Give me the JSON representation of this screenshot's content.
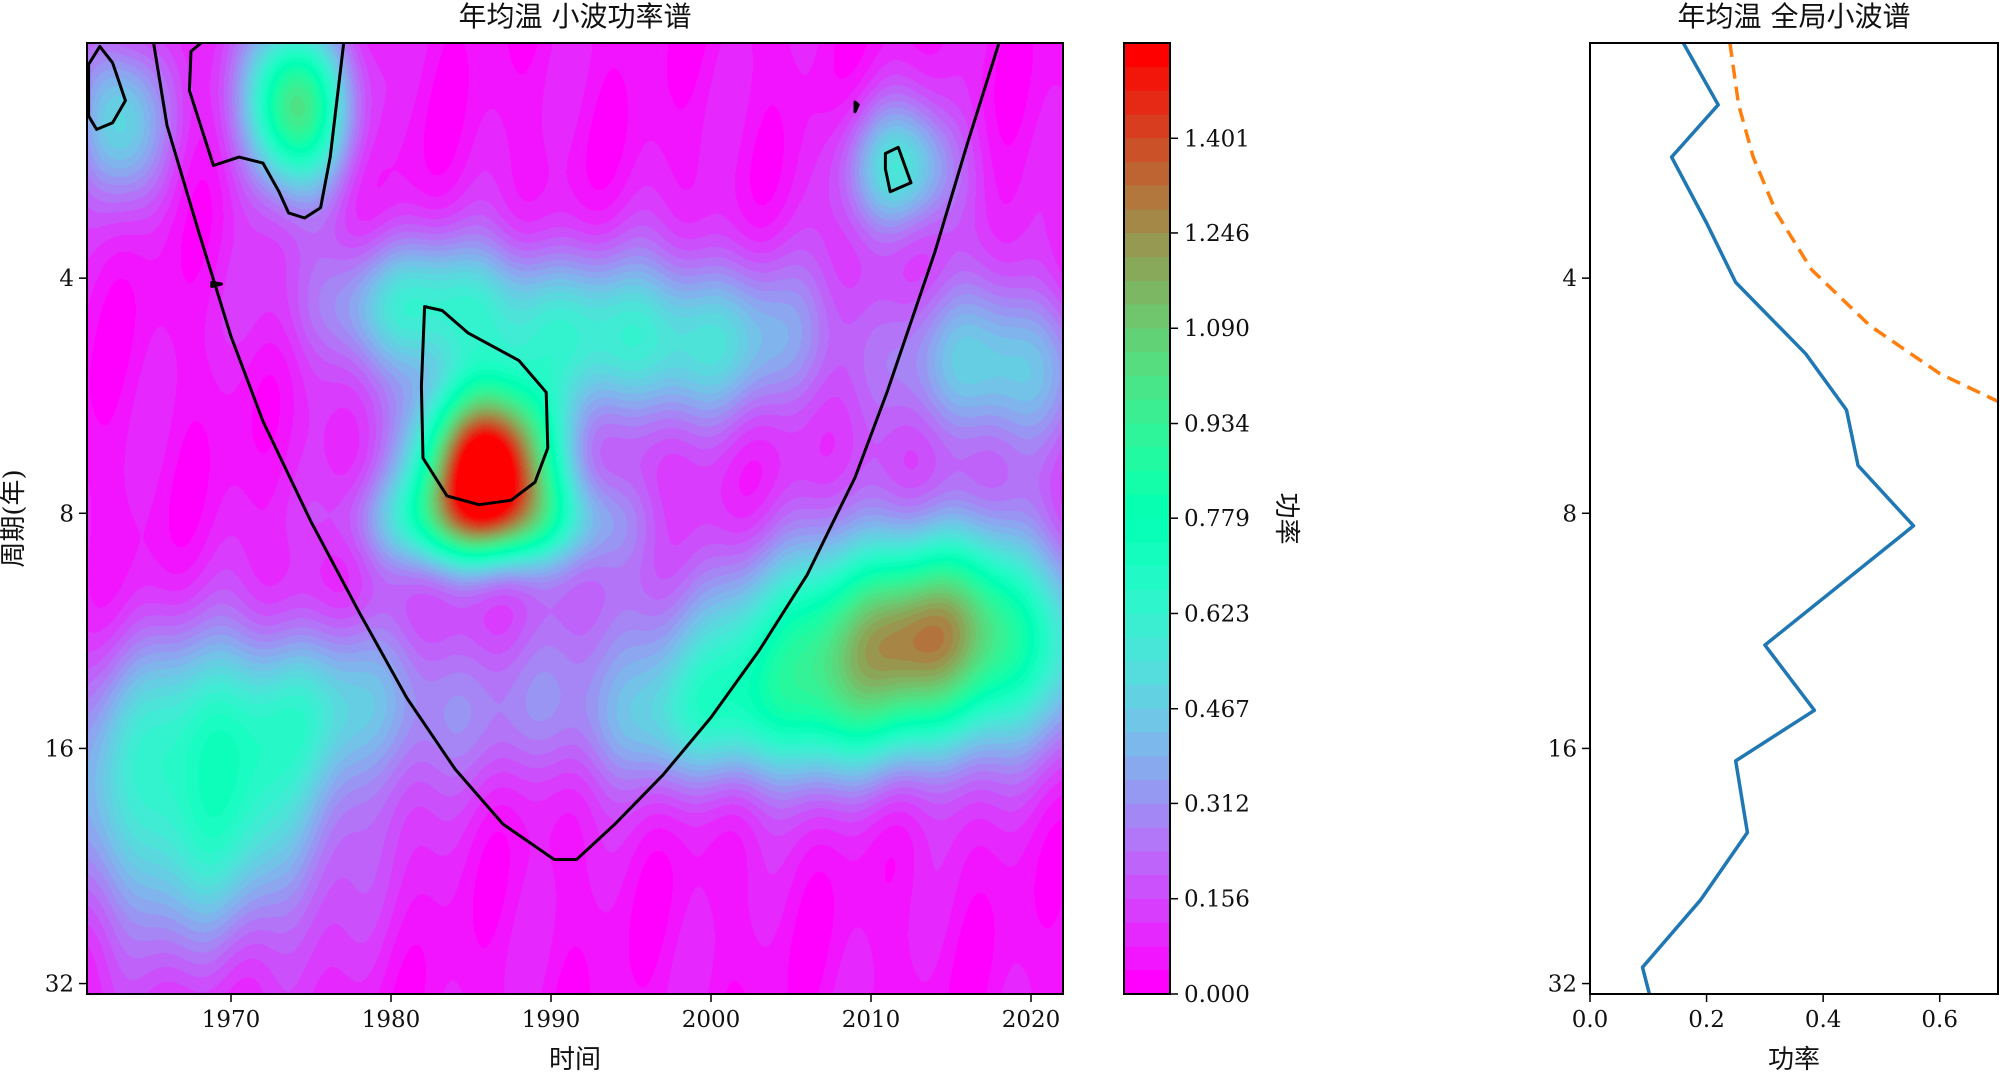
{
  "chart_data": [
    {
      "type": "heatmap",
      "title": "年均温 小波功率谱",
      "xlabel": "时间",
      "ylabel": "周期(年)",
      "colorbar_label": "功率",
      "colormap": "rainbow",
      "xlim": [
        1961,
        2022
      ],
      "x_ticks": [
        1970,
        1980,
        1990,
        2000,
        2010,
        2020
      ],
      "ylim": [
        2,
        33
      ],
      "y_scale": "log2",
      "y_inverted": true,
      "y_ticks": [
        {
          "value": 4,
          "label": "4"
        },
        {
          "value": 8,
          "label": "8"
        },
        {
          "value": 16,
          "label": "16"
        },
        {
          "value": 32,
          "label": "32"
        }
      ],
      "colorbar_range": [
        0,
        1.557
      ],
      "colorbar_ticks": [
        "0.000",
        "0.156",
        "0.312",
        "0.467",
        "0.623",
        "0.779",
        "0.934",
        "1.090",
        "1.246",
        "1.401"
      ],
      "power_blobs": [
        {
          "year": 1968,
          "period": 19,
          "power": 0.62,
          "sx": 6,
          "sy": 0.4
        },
        {
          "year": 1986,
          "period": 6.8,
          "power": 1.5,
          "sx": 3,
          "sy": 0.22
        },
        {
          "year": 1986,
          "period": 8.2,
          "power": 0.72,
          "sx": 5,
          "sy": 0.15
        },
        {
          "year": 1974,
          "period": 2.4,
          "power": 1.0,
          "sx": 2.2,
          "sy": 0.25
        },
        {
          "year": 2014,
          "period": 11,
          "power": 0.82,
          "sx": 6,
          "sy": 0.3
        },
        {
          "year": 2008,
          "period": 12.5,
          "power": 0.55,
          "sx": 10,
          "sy": 0.3
        },
        {
          "year": 1996,
          "period": 4.8,
          "power": 0.55,
          "sx": 8,
          "sy": 0.25
        },
        {
          "year": 1982,
          "period": 4.3,
          "power": 0.45,
          "sx": 5,
          "sy": 0.2
        },
        {
          "year": 1963,
          "period": 2.5,
          "power": 0.48,
          "sx": 2,
          "sy": 0.25
        },
        {
          "year": 2012,
          "period": 2.9,
          "power": 0.5,
          "sx": 2.5,
          "sy": 0.2
        },
        {
          "year": 2018,
          "period": 5.2,
          "power": 0.45,
          "sx": 4,
          "sy": 0.25
        },
        {
          "year": 1975,
          "period": 14,
          "power": 0.35,
          "sx": 8,
          "sy": 0.25
        },
        {
          "year": 2002,
          "period": 15,
          "power": 0.3,
          "sx": 8,
          "sy": 0.2
        }
      ],
      "significance_contours": [
        [
          [
            1961.1,
            2.13
          ],
          [
            1961.8,
            2.02
          ],
          [
            1962.6,
            2.12
          ],
          [
            1963.4,
            2.37
          ],
          [
            1962.6,
            2.53
          ],
          [
            1961.6,
            2.58
          ],
          [
            1961.1,
            2.48
          ]
        ],
        [
          [
            1967.5,
            2.05
          ],
          [
            1969.7,
            1.88
          ],
          [
            1974.2,
            1.88
          ],
          [
            1977.2,
            1.88
          ],
          [
            1976.2,
            2.8
          ],
          [
            1975.6,
            3.25
          ],
          [
            1974.6,
            3.35
          ],
          [
            1973.6,
            3.3
          ],
          [
            1973.0,
            3.1
          ],
          [
            1972.0,
            2.85
          ],
          [
            1970.5,
            2.8
          ],
          [
            1968.9,
            2.87
          ],
          [
            1968.1,
            2.55
          ],
          [
            1967.4,
            2.3
          ]
        ],
        [
          [
            1982.1,
            4.35
          ],
          [
            1983.2,
            4.4
          ],
          [
            1984.8,
            4.7
          ],
          [
            1988.0,
            5.1
          ],
          [
            1989.7,
            5.6
          ],
          [
            1989.8,
            6.6
          ],
          [
            1989.0,
            7.3
          ],
          [
            1987.5,
            7.7
          ],
          [
            1985.5,
            7.8
          ],
          [
            1983.5,
            7.6
          ],
          [
            1982.0,
            6.8
          ],
          [
            1981.9,
            5.5
          ],
          [
            1982.1,
            4.35
          ]
        ],
        [
          [
            2010.9,
            2.77
          ],
          [
            2011.7,
            2.72
          ],
          [
            2012.5,
            3.02
          ],
          [
            2011.2,
            3.1
          ],
          [
            2010.9,
            2.9
          ]
        ],
        [
          [
            2009.0,
            2.38
          ],
          [
            2009.2,
            2.4
          ],
          [
            2009.0,
            2.45
          ]
        ],
        [
          [
            1968.8,
            4.05
          ],
          [
            1969.4,
            4.07
          ],
          [
            1968.8,
            4.1
          ]
        ]
      ],
      "cone_of_influence": [
        [
          1964.8,
          1.8
        ],
        [
          1966,
          2.55
        ],
        [
          1968,
          3.5
        ],
        [
          1970,
          4.75
        ],
        [
          1972,
          6.1
        ],
        [
          1975,
          8.2
        ],
        [
          1978,
          10.7
        ],
        [
          1981,
          13.8
        ],
        [
          1984,
          17.0
        ],
        [
          1987,
          20.0
        ],
        [
          1990.2,
          22.2
        ],
        [
          1991.6,
          22.2
        ],
        [
          1994,
          20.0
        ],
        [
          1997,
          17.3
        ],
        [
          2000,
          14.6
        ],
        [
          2003,
          12.0
        ],
        [
          2006,
          9.6
        ],
        [
          2009,
          7.2
        ],
        [
          2011,
          5.6
        ],
        [
          2014,
          3.7
        ],
        [
          2016,
          2.7
        ],
        [
          2018,
          2.0
        ],
        [
          2018.3,
          1.8
        ]
      ]
    },
    {
      "type": "line",
      "title": "年均温 全局小波谱",
      "xlabel": "功率",
      "xlim": [
        0,
        0.7
      ],
      "x_ticks": [
        "0.0",
        "0.2",
        "0.4",
        "0.6"
      ],
      "ylim": [
        2,
        33
      ],
      "y_scale": "log2",
      "y_inverted": true,
      "y_ticks": [
        {
          "value": 4,
          "label": "4"
        },
        {
          "value": 8,
          "label": "8"
        },
        {
          "value": 16,
          "label": "16"
        },
        {
          "value": 32,
          "label": "32"
        }
      ],
      "series": [
        {
          "style": "solid",
          "color": "#1f77b4",
          "points": [
            [
              0.16,
              2.0
            ],
            [
              0.22,
              2.4
            ],
            [
              0.14,
              2.8
            ],
            [
              0.2,
              3.4
            ],
            [
              0.25,
              4.05
            ],
            [
              0.37,
              5.0
            ],
            [
              0.44,
              5.9
            ],
            [
              0.46,
              6.95
            ],
            [
              0.555,
              8.3
            ],
            [
              0.3,
              11.8
            ],
            [
              0.385,
              14.3
            ],
            [
              0.25,
              16.6
            ],
            [
              0.27,
              20.5
            ],
            [
              0.19,
              25.0
            ],
            [
              0.09,
              30.5
            ],
            [
              0.115,
              36.0
            ]
          ]
        },
        {
          "style": "dashed",
          "color": "#ff7f0e",
          "points": [
            [
              0.24,
              2.0
            ],
            [
              0.255,
              2.4
            ],
            [
              0.28,
              2.8
            ],
            [
              0.32,
              3.3
            ],
            [
              0.38,
              3.9
            ],
            [
              0.48,
              4.6
            ],
            [
              0.6,
              5.3
            ],
            [
              0.71,
              5.8
            ]
          ]
        }
      ]
    }
  ]
}
